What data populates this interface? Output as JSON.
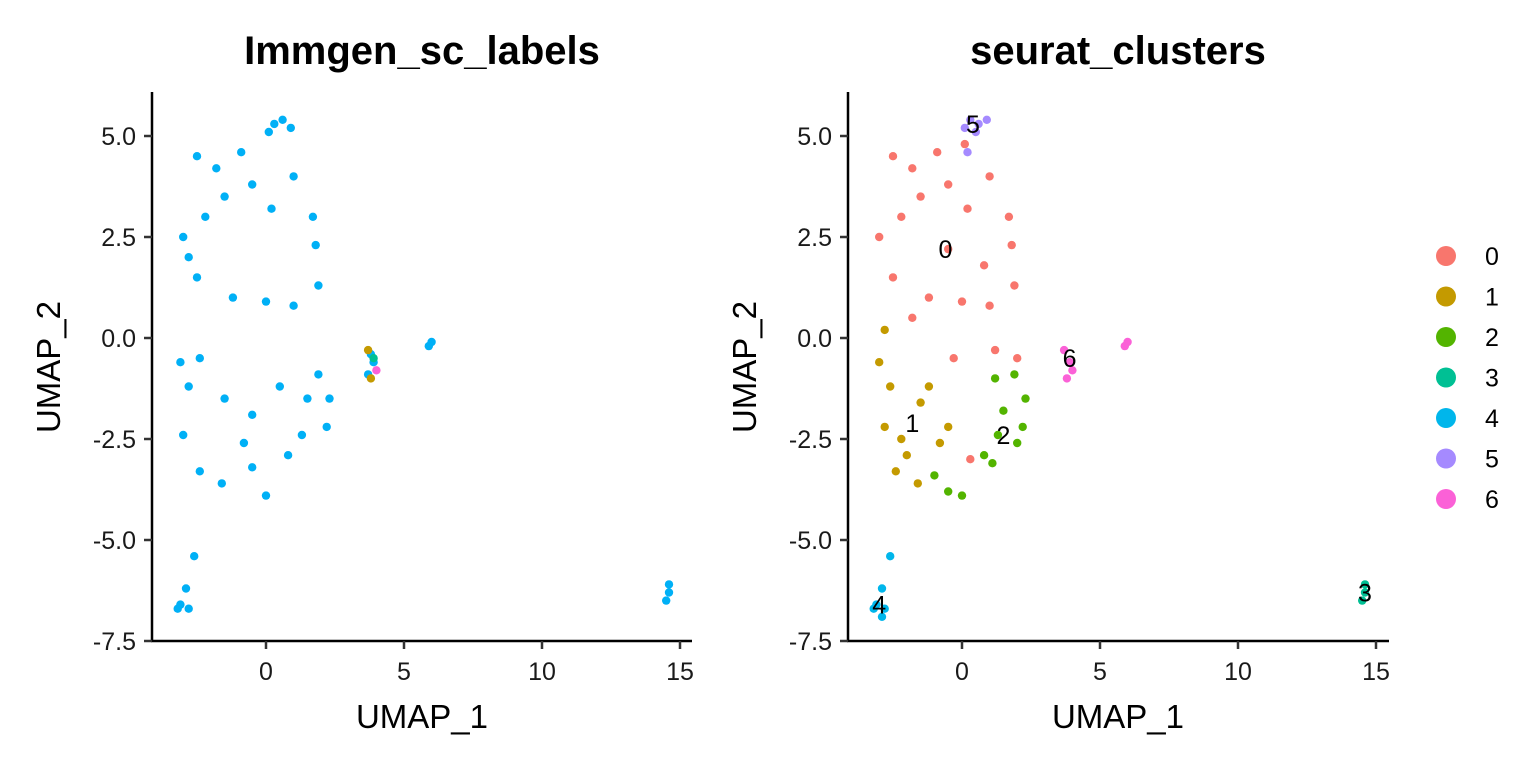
{
  "chart_data": [
    {
      "type": "scatter",
      "title": "Immgen_sc_labels",
      "xlabel": "UMAP_1",
      "ylabel": "UMAP_2",
      "xlim": [
        -4.2,
        15.5
      ],
      "ylim": [
        -7.6,
        6.1
      ],
      "xticks": [
        0,
        5,
        10,
        15
      ],
      "xtick_labels": [
        "0",
        "5",
        "10",
        "15"
      ],
      "yticks": [
        5.0,
        2.5,
        0.0,
        -2.5,
        -5.0,
        -7.5
      ],
      "ytick_labels": [
        "5.0",
        "2.5",
        "0.0",
        "-2.5",
        "-5.0",
        "-7.5"
      ],
      "grid": false,
      "legend": "none",
      "series": [
        {
          "color": "#00B0F6",
          "points": [
            [
              -2.5,
              4.5
            ],
            [
              -1.8,
              4.2
            ],
            [
              -0.9,
              4.6
            ],
            [
              0.1,
              5.1
            ],
            [
              0.6,
              5.4
            ],
            [
              0.3,
              5.3
            ],
            [
              0.9,
              5.2
            ],
            [
              -3,
              2.5
            ],
            [
              -2.8,
              2.0
            ],
            [
              -2.2,
              3.0
            ],
            [
              -1.5,
              3.5
            ],
            [
              -0.5,
              3.8
            ],
            [
              0.2,
              3.2
            ],
            [
              1.0,
              4.0
            ],
            [
              1.7,
              3.0
            ],
            [
              1.8,
              2.3
            ],
            [
              -2.5,
              1.5
            ],
            [
              -1.2,
              1.0
            ],
            [
              0.0,
              0.9
            ],
            [
              1.0,
              0.8
            ],
            [
              1.9,
              1.3
            ],
            [
              -3.1,
              -0.6
            ],
            [
              -2.8,
              -1.2
            ],
            [
              -2.4,
              -0.5
            ],
            [
              -1.5,
              -1.5
            ],
            [
              -0.5,
              -1.9
            ],
            [
              0.5,
              -1.2
            ],
            [
              1.5,
              -1.5
            ],
            [
              2.2,
              -2.2
            ],
            [
              -3.0,
              -2.4
            ],
            [
              -2.4,
              -3.3
            ],
            [
              -1.6,
              -3.6
            ],
            [
              -0.5,
              -3.2
            ],
            [
              0.0,
              -3.9
            ],
            [
              -0.8,
              -2.6
            ],
            [
              0.8,
              -2.9
            ],
            [
              1.3,
              -2.4
            ],
            [
              1.9,
              -0.9
            ],
            [
              2.3,
              -1.5
            ],
            [
              3.8,
              -0.4
            ],
            [
              3.9,
              -0.6
            ],
            [
              3.7,
              -0.9
            ],
            [
              5.9,
              -0.2
            ],
            [
              6.0,
              -0.1
            ],
            [
              -3.1,
              -6.6
            ],
            [
              -2.8,
              -6.7
            ],
            [
              -2.9,
              -6.2
            ],
            [
              -2.6,
              -5.4
            ],
            [
              -3.2,
              -6.7
            ],
            [
              14.6,
              -6.1
            ],
            [
              14.5,
              -6.5
            ],
            [
              14.6,
              -6.3
            ]
          ]
        },
        {
          "color": "#C49A00",
          "points": [
            [
              3.7,
              -0.3
            ],
            [
              3.8,
              -1.0
            ]
          ]
        },
        {
          "color": "#00C094",
          "points": [
            [
              3.9,
              -0.5
            ]
          ]
        },
        {
          "color": "#FB61D7",
          "points": [
            [
              4.0,
              -0.8
            ]
          ]
        }
      ]
    },
    {
      "type": "scatter",
      "title": "seurat_clusters",
      "xlabel": "UMAP_1",
      "ylabel": "UMAP_2",
      "xlim": [
        -4.2,
        15.5
      ],
      "ylim": [
        -7.6,
        6.1
      ],
      "xticks": [
        0,
        5,
        10,
        15
      ],
      "xtick_labels": [
        "0",
        "5",
        "10",
        "15"
      ],
      "yticks": [
        5.0,
        2.5,
        0.0,
        -2.5,
        -5.0,
        -7.5
      ],
      "ytick_labels": [
        "5.0",
        "2.5",
        "0.0",
        "-2.5",
        "-5.0",
        "-7.5"
      ],
      "grid": false,
      "legend": "right",
      "series": [
        {
          "name": "0",
          "color": "#F8766D",
          "label_at": [
            -0.6,
            2.2
          ],
          "points": [
            [
              -2.5,
              4.5
            ],
            [
              -1.8,
              4.2
            ],
            [
              -0.9,
              4.6
            ],
            [
              0.1,
              4.8
            ],
            [
              1.0,
              4.0
            ],
            [
              -3,
              2.5
            ],
            [
              -2.2,
              3.0
            ],
            [
              -1.5,
              3.5
            ],
            [
              -0.5,
              3.8
            ],
            [
              0.2,
              3.2
            ],
            [
              1.7,
              3.0
            ],
            [
              1.8,
              2.3
            ],
            [
              -2.5,
              1.5
            ],
            [
              -1.2,
              1.0
            ],
            [
              0.0,
              0.9
            ],
            [
              1.0,
              0.8
            ],
            [
              1.9,
              1.3
            ],
            [
              -0.5,
              2.2
            ],
            [
              0.8,
              1.8
            ],
            [
              -1.8,
              0.5
            ],
            [
              1.2,
              -0.3
            ],
            [
              2.0,
              -0.5
            ],
            [
              -0.3,
              -0.5
            ],
            [
              0.3,
              -3.0
            ]
          ]
        },
        {
          "name": "1",
          "color": "#C49A00",
          "label_at": [
            -1.8,
            -2.1
          ],
          "points": [
            [
              -2.8,
              0.2
            ],
            [
              -3.0,
              -0.6
            ],
            [
              -2.6,
              -1.2
            ],
            [
              -2.8,
              -2.2
            ],
            [
              -2.2,
              -2.5
            ],
            [
              -1.5,
              -1.6
            ],
            [
              -0.8,
              -2.6
            ],
            [
              -2.4,
              -3.3
            ],
            [
              -1.6,
              -3.6
            ],
            [
              -2.0,
              -2.9
            ],
            [
              -0.5,
              -2.2
            ],
            [
              -1.2,
              -1.2
            ]
          ]
        },
        {
          "name": "2",
          "color": "#53B400",
          "label_at": [
            1.5,
            -2.4
          ],
          "points": [
            [
              1.2,
              -1.0
            ],
            [
              1.9,
              -0.9
            ],
            [
              2.3,
              -1.5
            ],
            [
              1.5,
              -1.8
            ],
            [
              2.2,
              -2.2
            ],
            [
              1.3,
              -2.4
            ],
            [
              0.8,
              -2.9
            ],
            [
              1.1,
              -3.1
            ],
            [
              0.0,
              -3.9
            ],
            [
              -0.5,
              -3.8
            ],
            [
              -1.0,
              -3.4
            ],
            [
              2.0,
              -2.6
            ]
          ]
        },
        {
          "name": "3",
          "color": "#00C094",
          "label_at": [
            14.6,
            -6.3
          ],
          "points": [
            [
              14.6,
              -6.1
            ],
            [
              14.5,
              -6.5
            ],
            [
              14.6,
              -6.3
            ]
          ]
        },
        {
          "name": "4",
          "color": "#00B6EB",
          "label_at": [
            -3.0,
            -6.6
          ],
          "points": [
            [
              -3.1,
              -6.6
            ],
            [
              -2.8,
              -6.7
            ],
            [
              -2.9,
              -6.2
            ],
            [
              -2.6,
              -5.4
            ],
            [
              -3.2,
              -6.7
            ],
            [
              -2.9,
              -6.9
            ]
          ]
        },
        {
          "name": "5",
          "color": "#A58AFF",
          "label_at": [
            0.4,
            5.3
          ],
          "points": [
            [
              0.1,
              5.2
            ],
            [
              0.3,
              5.4
            ],
            [
              0.6,
              5.3
            ],
            [
              0.9,
              5.4
            ],
            [
              0.2,
              4.6
            ],
            [
              0.5,
              5.1
            ]
          ]
        },
        {
          "name": "6",
          "color": "#FB61D7",
          "label_at": [
            3.9,
            -0.5
          ],
          "points": [
            [
              3.7,
              -0.3
            ],
            [
              3.8,
              -1.0
            ],
            [
              3.9,
              -0.6
            ],
            [
              4.0,
              -0.8
            ],
            [
              5.9,
              -0.2
            ],
            [
              6.0,
              -0.1
            ]
          ]
        }
      ]
    }
  ]
}
